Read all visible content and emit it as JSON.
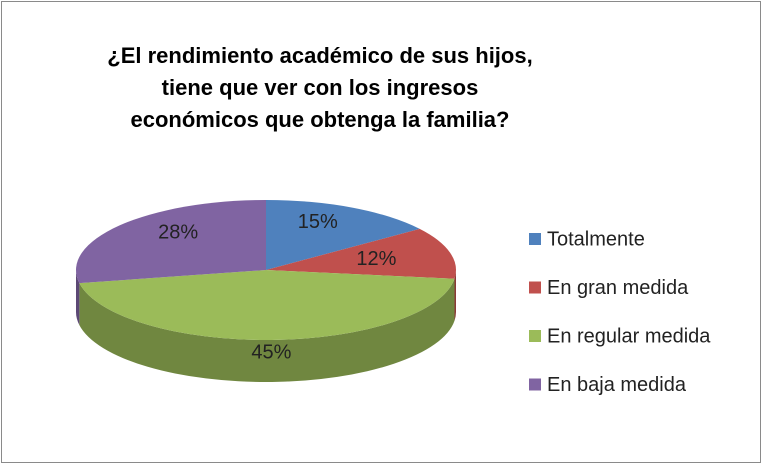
{
  "chart_data": {
    "type": "pie",
    "title": "¿El rendimiento académico de sus hijos, tiene que ver con los ingresos económicos que obtenga la familia?",
    "categories": [
      "Totalmente",
      "En gran medida",
      "En regular medida",
      "En baja medida"
    ],
    "values": [
      15,
      12,
      45,
      28
    ],
    "value_labels": [
      "15%",
      "12%",
      "45%",
      "28%"
    ],
    "colors": [
      "#4f81bd",
      "#c0504d",
      "#9bbb59",
      "#8064a2"
    ],
    "legend": "right"
  }
}
